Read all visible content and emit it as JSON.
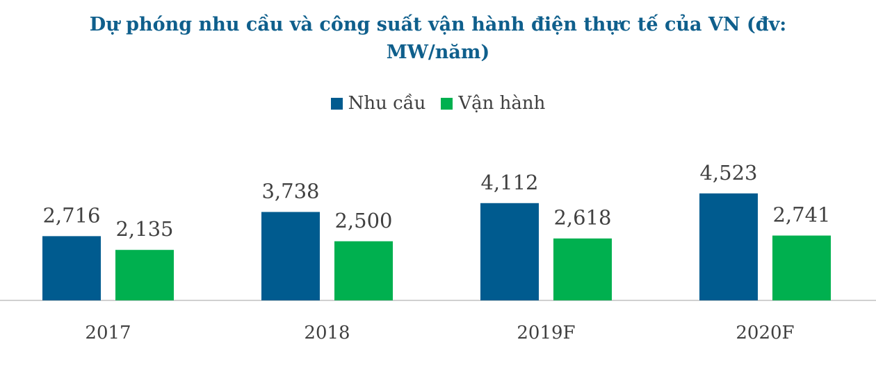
{
  "title_lines": [
    "Dự phóng nhu cầu và công suất vận hành điện thực tế của VN (đv:",
    "MW/năm)"
  ],
  "colors": {
    "title": "#0f5f8c",
    "series1": "#005b8f",
    "series2": "#00b04f",
    "axis": "#d0d0d0",
    "text": "#404040"
  },
  "chart_data": {
    "type": "bar",
    "title": "Dự phóng nhu cầu và công suất vận hành điện thực tế của VN (đv: MW/năm)",
    "categories": [
      "2017",
      "2018",
      "2019F",
      "2020F"
    ],
    "series": [
      {
        "name": "Nhu cầu",
        "values": [
          2716,
          3738,
          4112,
          4523
        ],
        "labels": [
          "2,716",
          "3,738",
          "4,112",
          "4,523"
        ]
      },
      {
        "name": "Vận hành",
        "values": [
          2135,
          2500,
          2618,
          2741
        ],
        "labels": [
          "2,135",
          "2,500",
          "2,618",
          "2,741"
        ]
      }
    ],
    "legend_position": "top",
    "grid": false
  }
}
